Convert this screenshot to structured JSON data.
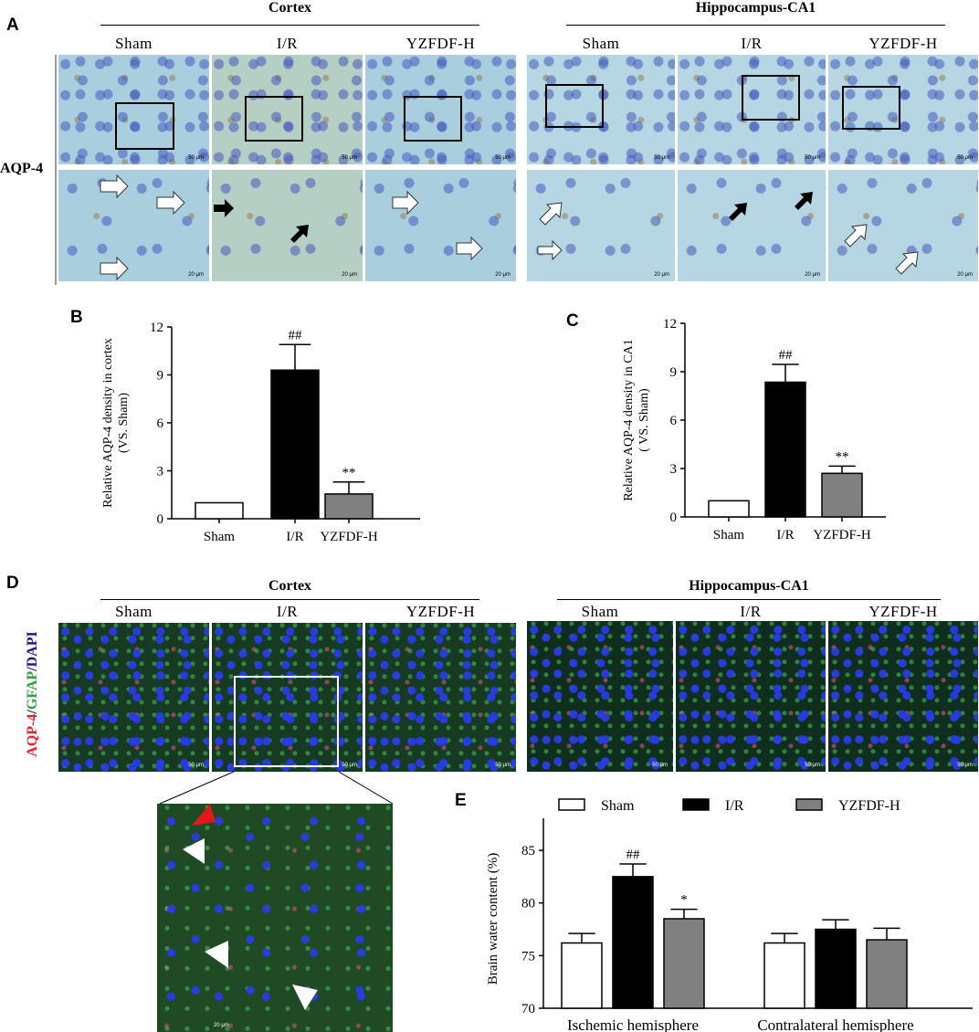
{
  "panel_a": {
    "letter": "A",
    "row_label": "AQP-4",
    "groups": [
      {
        "title": "Cortex",
        "columns": [
          "Sham",
          "I/R",
          "YZFDF-H"
        ]
      },
      {
        "title": "Hippocampus-CA1",
        "columns": [
          "Sham",
          "I/R",
          "YZFDF-H"
        ]
      }
    ],
    "scale_top": "50 μm",
    "scale_bottom": "20 μm",
    "arrow_icons": [
      "white-arrow-icon",
      "black-arrow-icon"
    ]
  },
  "panel_d": {
    "letter": "D",
    "stain_parts": [
      {
        "text": "AQP-4",
        "color": "#e8202a"
      },
      {
        "text": "/",
        "color": "#1a1a8a"
      },
      {
        "text": "GFAP",
        "color": "#2ea043"
      },
      {
        "text": "/",
        "color": "#1a1a8a"
      },
      {
        "text": "DAPI",
        "color": "#1a1a8a"
      }
    ],
    "groups": [
      {
        "title": "Cortex",
        "columns": [
          "Sham",
          "I/R",
          "YZFDF-H"
        ]
      },
      {
        "title": "Hippocampus-CA1",
        "columns": [
          "Sham",
          "I/R",
          "YZFDF-H"
        ]
      }
    ],
    "scale_top": "50 μm",
    "scale_zoom": "20 μm",
    "arrowhead_colors": [
      "#e01a1a",
      "#ffffff"
    ]
  },
  "chart_data": [
    {
      "id": "B",
      "type": "bar",
      "ylabel_line1": "Relative AQP-4 density in cortex",
      "ylabel_line2": "(VS. Sham)",
      "categories": [
        "Sham",
        "I/R",
        "YZFDF-H"
      ],
      "values": [
        1.0,
        9.3,
        1.55
      ],
      "errors": [
        0,
        1.6,
        0.75
      ],
      "colors": [
        "#ffffff",
        "#000000",
        "#808080"
      ],
      "annotations": [
        "",
        "##",
        "**"
      ],
      "ylim": [
        0,
        12
      ],
      "yticks": [
        0,
        3,
        6,
        9,
        12
      ]
    },
    {
      "id": "C",
      "type": "bar",
      "ylabel_line1": "Relative AQP-4 density in CA1",
      "ylabel_line2": "( VS. Sham)",
      "categories": [
        "Sham",
        "I/R",
        "YZFDF-H"
      ],
      "values": [
        1.0,
        8.35,
        2.7
      ],
      "errors": [
        0,
        1.1,
        0.45
      ],
      "colors": [
        "#ffffff",
        "#000000",
        "#808080"
      ],
      "annotations": [
        "",
        "##",
        "**"
      ],
      "ylim": [
        0,
        12
      ],
      "yticks": [
        0,
        3,
        6,
        9,
        12
      ]
    },
    {
      "id": "E",
      "type": "bar",
      "ylabel": "Brain water content (%)",
      "categories": [
        "Ischemic hemisphere",
        "Contralateral hemisphere"
      ],
      "series": [
        {
          "name": "Sham",
          "values": [
            76.2,
            76.2
          ],
          "errors": [
            0.9,
            0.9
          ],
          "color": "#ffffff"
        },
        {
          "name": "I/R",
          "values": [
            82.5,
            77.5
          ],
          "errors": [
            1.2,
            0.9
          ],
          "color": "#000000"
        },
        {
          "name": "YZFDF-H",
          "values": [
            78.5,
            76.5
          ],
          "errors": [
            0.9,
            1.1
          ],
          "color": "#808080"
        }
      ],
      "annotations": [
        [
          "",
          "##",
          "*"
        ],
        [
          "",
          "",
          ""
        ]
      ],
      "ylim": [
        70,
        87
      ],
      "yticks": [
        70,
        75,
        80,
        85
      ],
      "legend": "top"
    }
  ]
}
